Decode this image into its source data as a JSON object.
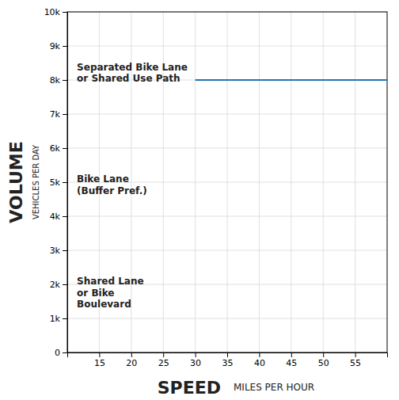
{
  "chart_data": {
    "type": "line",
    "xlabel": "SPEED",
    "xlabel_sub": "MILES PER HOUR",
    "ylabel": "VOLUME",
    "ylabel_sub": "VEHICLES PER DAY",
    "x": [
      30,
      60
    ],
    "values": [
      8000,
      8000
    ],
    "xlim": [
      10,
      60
    ],
    "ylim": [
      0,
      10000
    ],
    "xticks": [
      15,
      20,
      25,
      30,
      35,
      40,
      45,
      50,
      55
    ],
    "yticks": [
      0,
      {
        "value": 1000,
        "label": "1k"
      },
      {
        "value": 2000,
        "label": "2k"
      },
      {
        "value": 3000,
        "label": "3k"
      },
      {
        "value": 4000,
        "label": "4k"
      },
      {
        "value": 5000,
        "label": "5k"
      },
      {
        "value": 6000,
        "label": "6k"
      },
      {
        "value": 7000,
        "label": "7k"
      },
      {
        "value": 8000,
        "label": "8k"
      },
      {
        "value": 9000,
        "label": "9k"
      },
      {
        "value": 10000,
        "label": "10k"
      }
    ],
    "grid": true,
    "annotations": [
      {
        "text": "Shared Lane\nor Bike\nBoulevard",
        "x": 11.5,
        "y": 2200
      },
      {
        "text": "Bike Lane\n(Buffer Pref.)",
        "x": 11.5,
        "y": 5200
      },
      {
        "text": "Separated Bike Lane\nor Shared Use Path",
        "x": 11.5,
        "y": 8500
      }
    ]
  }
}
